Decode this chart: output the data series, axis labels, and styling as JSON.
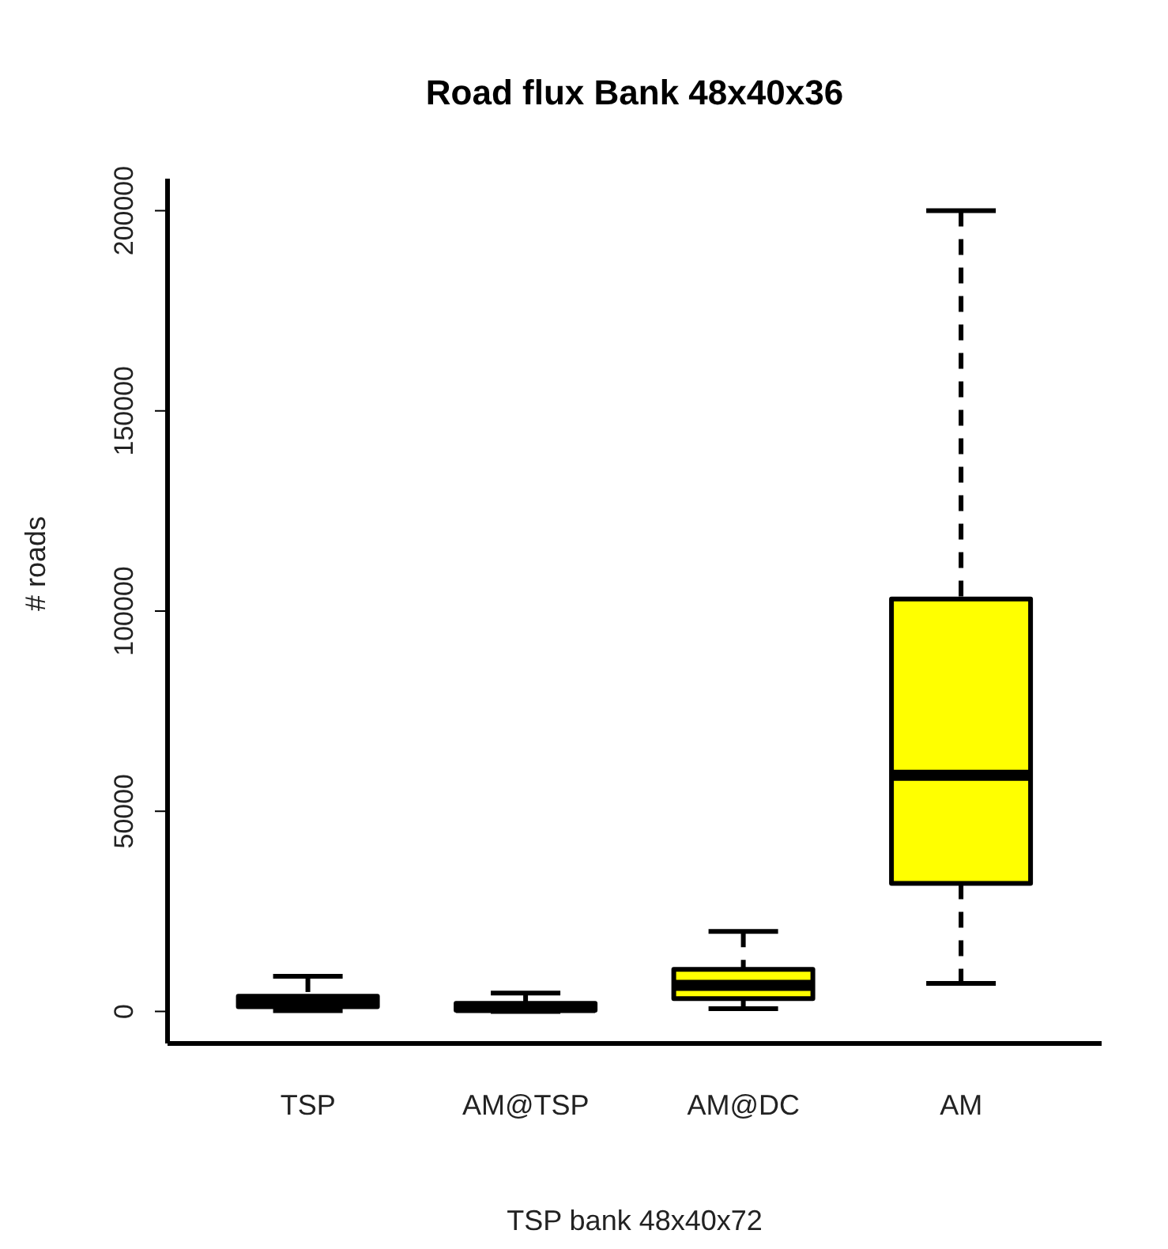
{
  "chart_data": {
    "type": "box",
    "title": "Road flux Bank  48x40x36",
    "xlabel": "TSP bank 48x40x72",
    "ylabel": "# roads",
    "categories": [
      "TSP",
      "AM@TSP",
      "AM@DC",
      "AM"
    ],
    "color": "#ffff00",
    "line_style": "dashed",
    "boxes": [
      {
        "low": 200,
        "q1": 1200,
        "median": 2500,
        "q3": 3800,
        "high": 8800
      },
      {
        "low": 0,
        "q1": 300,
        "median": 1000,
        "q3": 2000,
        "high": 4600
      },
      {
        "low": 700,
        "q1": 3200,
        "median": 6500,
        "q3": 10500,
        "high": 20000
      },
      {
        "low": 7000,
        "q1": 32000,
        "median": 59000,
        "q3": 103000,
        "high": 200000
      }
    ],
    "ylim": [
      -8000,
      208000
    ],
    "yticks": [
      0,
      50000,
      100000,
      150000,
      200000
    ]
  }
}
